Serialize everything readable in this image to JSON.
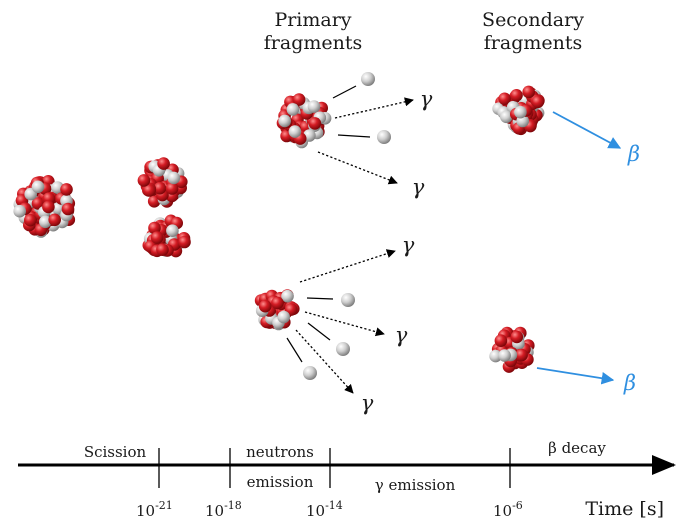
{
  "headers": {
    "primary": [
      "Primary",
      "fragments"
    ],
    "secondary": [
      "Secondary",
      "fragments"
    ]
  },
  "timeline": {
    "scission": "Scission",
    "neutrons_emission": [
      "neutrons",
      "emission"
    ],
    "gamma_emission": "γ emission",
    "beta_decay": "β decay",
    "axis_label": "Time [s]",
    "ticks": [
      {
        "base": "10",
        "exp": "-21"
      },
      {
        "base": "10",
        "exp": "-18"
      },
      {
        "base": "10",
        "exp": "-14"
      },
      {
        "base": "10",
        "exp": "-6"
      }
    ]
  },
  "symbols": {
    "gamma": "γ",
    "beta": "β"
  },
  "colors": {
    "proton": "#c8141e",
    "neutron": "#c4c4c4",
    "beta_arrow": "#2f8fe0",
    "axis": "#000000"
  }
}
